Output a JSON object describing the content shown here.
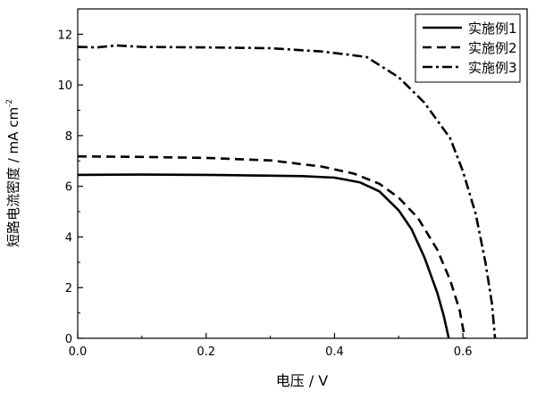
{
  "chart_data": {
    "type": "line",
    "xlabel": "电压 / V",
    "ylabel": "短路电流密度 / mA cm",
    "ylabel_superscript": "-2",
    "xlim": [
      0,
      0.7
    ],
    "ylim": [
      0,
      13
    ],
    "xticks": [
      0.0,
      0.2,
      0.4,
      0.6
    ],
    "xtick_labels": [
      "0.0",
      "0.2",
      "0.4",
      "0.6"
    ],
    "yticks": [
      0,
      2,
      4,
      6,
      8,
      10,
      12
    ],
    "ytick_labels": [
      "0",
      "2",
      "4",
      "6",
      "8",
      "10",
      "12"
    ],
    "grid": false,
    "legend_position": "top-right",
    "series": [
      {
        "name": "实施例1",
        "dash": "solid",
        "points": [
          [
            0.0,
            6.45
          ],
          [
            0.1,
            6.46
          ],
          [
            0.2,
            6.45
          ],
          [
            0.3,
            6.42
          ],
          [
            0.35,
            6.4
          ],
          [
            0.4,
            6.34
          ],
          [
            0.44,
            6.15
          ],
          [
            0.47,
            5.8
          ],
          [
            0.5,
            5.05
          ],
          [
            0.52,
            4.3
          ],
          [
            0.54,
            3.2
          ],
          [
            0.56,
            1.8
          ],
          [
            0.57,
            0.9
          ],
          [
            0.578,
            0.0
          ]
        ]
      },
      {
        "name": "实施例2",
        "dash": "dashed",
        "points": [
          [
            0.0,
            7.18
          ],
          [
            0.1,
            7.16
          ],
          [
            0.2,
            7.12
          ],
          [
            0.3,
            7.02
          ],
          [
            0.38,
            6.78
          ],
          [
            0.43,
            6.5
          ],
          [
            0.47,
            6.1
          ],
          [
            0.5,
            5.55
          ],
          [
            0.53,
            4.75
          ],
          [
            0.56,
            3.5
          ],
          [
            0.58,
            2.3
          ],
          [
            0.595,
            1.1
          ],
          [
            0.603,
            0.0
          ]
        ]
      },
      {
        "name": "实施例3",
        "dash": "dashdot",
        "points": [
          [
            0.0,
            11.5
          ],
          [
            0.03,
            11.48
          ],
          [
            0.06,
            11.56
          ],
          [
            0.1,
            11.5
          ],
          [
            0.2,
            11.48
          ],
          [
            0.3,
            11.45
          ],
          [
            0.38,
            11.32
          ],
          [
            0.42,
            11.2
          ],
          [
            0.45,
            11.1
          ],
          [
            0.5,
            10.3
          ],
          [
            0.54,
            9.3
          ],
          [
            0.58,
            7.9
          ],
          [
            0.6,
            6.6
          ],
          [
            0.62,
            4.9
          ],
          [
            0.635,
            3.0
          ],
          [
            0.645,
            1.4
          ],
          [
            0.65,
            0.0
          ]
        ]
      }
    ]
  }
}
